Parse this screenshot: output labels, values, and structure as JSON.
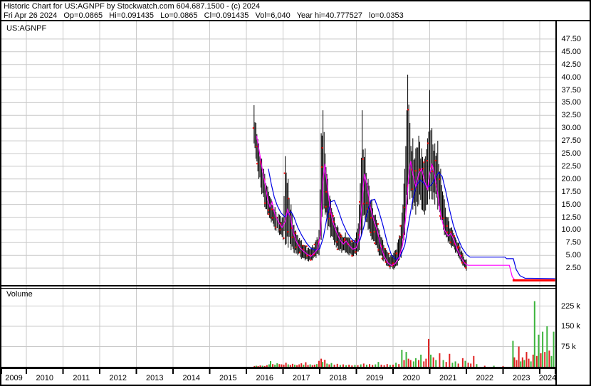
{
  "header": {
    "line1": "Historic Chart for US:AGNPF by Stockwatch.com 604.687.1500 - (c) 2024",
    "line2": "Fri Apr 26 2024   Op=0.0865   Hi=0.091435   Lo=0.0865   Cl=0.091435   Vol=6,040   Year hi=40.777527   lo=0.0353"
  },
  "price_pane": {
    "symbol_label": "US:AGNPF"
  },
  "volume_pane": {
    "label": "Volume"
  },
  "axes": {
    "price_ticks": [
      "47.50",
      "45.00",
      "42.50",
      "40.00",
      "37.50",
      "35.00",
      "32.50",
      "30.00",
      "27.50",
      "25.00",
      "22.50",
      "20.00",
      "17.50",
      "15.00",
      "12.50",
      "10.00",
      "7.50",
      "5.00",
      "2.50"
    ],
    "volume_ticks": [
      "225 k",
      "150 k",
      "75 k"
    ],
    "years": [
      "2009",
      "2010",
      "2011",
      "2012",
      "2013",
      "2014",
      "2015",
      "2016",
      "2017",
      "2018",
      "2019",
      "2020",
      "2021",
      "2022",
      "2023",
      "2024"
    ]
  },
  "colors": {
    "grid": "#c9c9c9",
    "bars": "#000000",
    "close_tick": "#ff0000",
    "ma_fast": "#ff00ff",
    "ma_slow": "#0000e6",
    "last_price": "#ff0000",
    "volume_up": "#3cb43c",
    "volume_down": "#e02222",
    "border": "#000000"
  },
  "chart_data": {
    "type": "ohlc-bar+volume",
    "title": "Historic Chart for US:AGNPF",
    "x_span_years": [
      2009,
      2024.43
    ],
    "price_ylim": [
      0,
      48.75
    ],
    "volume_ylim_k": [
      0,
      270
    ],
    "legend_position": "none",
    "grid": true,
    "bars_envelope_lo_hi": [
      [
        2016.21,
        27,
        34.5
      ],
      [
        2016.26,
        24,
        31
      ],
      [
        2016.34,
        20,
        27
      ],
      [
        2016.42,
        17,
        24
      ],
      [
        2016.5,
        14.5,
        21
      ],
      [
        2016.58,
        13,
        18.5
      ],
      [
        2016.68,
        11.5,
        16
      ],
      [
        2016.78,
        10,
        14.5
      ],
      [
        2016.9,
        9,
        13
      ],
      [
        2017.0,
        8,
        12.5
      ],
      [
        2017.06,
        7,
        24.5
      ],
      [
        2017.14,
        6.5,
        20
      ],
      [
        2017.22,
        6,
        15
      ],
      [
        2017.3,
        5.5,
        11
      ],
      [
        2017.4,
        5,
        9
      ],
      [
        2017.5,
        4.3,
        8
      ],
      [
        2017.6,
        4,
        7
      ],
      [
        2017.7,
        3.8,
        6.5
      ],
      [
        2017.8,
        4,
        7
      ],
      [
        2017.9,
        4.5,
        8
      ],
      [
        2017.98,
        5,
        10
      ],
      [
        2018.04,
        8,
        29
      ],
      [
        2018.09,
        14,
        33.5
      ],
      [
        2018.15,
        13,
        25
      ],
      [
        2018.22,
        10,
        20
      ],
      [
        2018.3,
        8.5,
        16
      ],
      [
        2018.4,
        7,
        12.5
      ],
      [
        2018.5,
        6,
        10.5
      ],
      [
        2018.6,
        5.5,
        9
      ],
      [
        2018.7,
        5.5,
        9.5
      ],
      [
        2018.8,
        5,
        8.5
      ],
      [
        2018.9,
        4.8,
        8
      ],
      [
        2019.0,
        5,
        9.5
      ],
      [
        2019.08,
        6,
        15
      ],
      [
        2019.16,
        10,
        33.5
      ],
      [
        2019.24,
        12,
        26
      ],
      [
        2019.32,
        10,
        20
      ],
      [
        2019.42,
        8,
        16
      ],
      [
        2019.52,
        7,
        13
      ],
      [
        2019.62,
        5,
        10
      ],
      [
        2019.72,
        4,
        8
      ],
      [
        2019.82,
        3,
        6
      ],
      [
        2019.92,
        2.3,
        5
      ],
      [
        2020.02,
        2.2,
        5.5
      ],
      [
        2020.12,
        3,
        7.5
      ],
      [
        2020.22,
        4.5,
        11
      ],
      [
        2020.32,
        9,
        22
      ],
      [
        2020.4,
        15,
        40.5
      ],
      [
        2020.46,
        16,
        31
      ],
      [
        2020.54,
        14,
        28
      ],
      [
        2020.62,
        13,
        26
      ],
      [
        2020.7,
        15,
        28.5
      ],
      [
        2020.78,
        14,
        26
      ],
      [
        2020.86,
        13,
        24
      ],
      [
        2020.94,
        15,
        28
      ],
      [
        2021.0,
        16,
        37.5
      ],
      [
        2021.06,
        16,
        30
      ],
      [
        2021.14,
        15,
        27
      ],
      [
        2021.22,
        14,
        27.5
      ],
      [
        2021.3,
        12,
        22
      ],
      [
        2021.4,
        9,
        16
      ],
      [
        2021.5,
        7.5,
        12.5
      ],
      [
        2021.6,
        6.5,
        10.5
      ],
      [
        2021.7,
        5.5,
        8.5
      ],
      [
        2021.8,
        4.5,
        7.5
      ],
      [
        2021.9,
        3,
        5.5
      ],
      [
        2022.0,
        2,
        4.2
      ],
      [
        2022.04,
        1.8,
        3.5
      ]
    ],
    "ma_fast_magenta": [
      [
        2016.28,
        28.5
      ],
      [
        2016.34,
        26
      ],
      [
        2016.42,
        22.5
      ],
      [
        2016.5,
        19.5
      ],
      [
        2016.58,
        16
      ],
      [
        2016.64,
        14.5
      ],
      [
        2016.7,
        15.5
      ],
      [
        2016.78,
        13
      ],
      [
        2016.88,
        11.5
      ],
      [
        2016.97,
        10.5
      ],
      [
        2017.05,
        11.5
      ],
      [
        2017.12,
        14
      ],
      [
        2017.2,
        12.5
      ],
      [
        2017.28,
        9.5
      ],
      [
        2017.36,
        7.8
      ],
      [
        2017.46,
        6.5
      ],
      [
        2017.56,
        5.8
      ],
      [
        2017.66,
        5.2
      ],
      [
        2017.76,
        4.8
      ],
      [
        2017.86,
        5.5
      ],
      [
        2017.94,
        6.2
      ],
      [
        2018.02,
        9
      ],
      [
        2018.08,
        19
      ],
      [
        2018.14,
        23
      ],
      [
        2018.2,
        19
      ],
      [
        2018.28,
        14.5
      ],
      [
        2018.36,
        11.5
      ],
      [
        2018.46,
        9.5
      ],
      [
        2018.56,
        8
      ],
      [
        2018.64,
        7.2
      ],
      [
        2018.72,
        7.8
      ],
      [
        2018.8,
        7
      ],
      [
        2018.9,
        6.2
      ],
      [
        2019.0,
        6.5
      ],
      [
        2019.08,
        8.5
      ],
      [
        2019.16,
        16
      ],
      [
        2019.22,
        21
      ],
      [
        2019.3,
        18.5
      ],
      [
        2019.38,
        14.5
      ],
      [
        2019.48,
        11.8
      ],
      [
        2019.58,
        9.5
      ],
      [
        2019.66,
        7
      ],
      [
        2019.76,
        4.8
      ],
      [
        2019.86,
        3.5
      ],
      [
        2019.96,
        3.0
      ],
      [
        2020.06,
        3.4
      ],
      [
        2020.16,
        4.5
      ],
      [
        2020.26,
        7
      ],
      [
        2020.34,
        12
      ],
      [
        2020.42,
        20
      ],
      [
        2020.48,
        23.5
      ],
      [
        2020.54,
        21
      ],
      [
        2020.62,
        18.5
      ],
      [
        2020.7,
        21
      ],
      [
        2020.78,
        22
      ],
      [
        2020.86,
        19.5
      ],
      [
        2020.94,
        18
      ],
      [
        2021.0,
        21
      ],
      [
        2021.06,
        23
      ],
      [
        2021.14,
        20.5
      ],
      [
        2021.22,
        17
      ],
      [
        2021.3,
        13
      ],
      [
        2021.4,
        10
      ],
      [
        2021.5,
        8.8
      ],
      [
        2021.58,
        9.3
      ],
      [
        2021.66,
        8
      ],
      [
        2021.76,
        6
      ],
      [
        2021.86,
        4.5
      ],
      [
        2021.96,
        3.4
      ],
      [
        2022.04,
        3.05
      ],
      [
        2023.17,
        3.05
      ],
      [
        2023.25,
        0.8
      ],
      [
        2023.32,
        0.15
      ],
      [
        2024.42,
        0.12
      ]
    ],
    "ma_slow_blue": [
      [
        2016.6,
        22
      ],
      [
        2016.68,
        19
      ],
      [
        2016.76,
        16.5
      ],
      [
        2016.84,
        14.8
      ],
      [
        2016.94,
        13.4
      ],
      [
        2017.04,
        12.6
      ],
      [
        2017.12,
        13
      ],
      [
        2017.22,
        13.6
      ],
      [
        2017.3,
        12.5
      ],
      [
        2017.4,
        10.5
      ],
      [
        2017.52,
        8.8
      ],
      [
        2017.64,
        7.4
      ],
      [
        2017.76,
        6.4
      ],
      [
        2017.88,
        6.0
      ],
      [
        2018.0,
        6.3
      ],
      [
        2018.1,
        8.5
      ],
      [
        2018.2,
        12.5
      ],
      [
        2018.3,
        15.5
      ],
      [
        2018.4,
        15.8
      ],
      [
        2018.5,
        14
      ],
      [
        2018.62,
        11.5
      ],
      [
        2018.74,
        9.6
      ],
      [
        2018.86,
        8.3
      ],
      [
        2018.98,
        7.5
      ],
      [
        2019.1,
        8
      ],
      [
        2019.2,
        10.5
      ],
      [
        2019.3,
        13.5
      ],
      [
        2019.4,
        15.8
      ],
      [
        2019.5,
        16
      ],
      [
        2019.6,
        14
      ],
      [
        2019.72,
        11
      ],
      [
        2019.84,
        7.5
      ],
      [
        2019.96,
        5
      ],
      [
        2020.08,
        4.2
      ],
      [
        2020.2,
        4.8
      ],
      [
        2020.32,
        7
      ],
      [
        2020.44,
        12
      ],
      [
        2020.54,
        16
      ],
      [
        2020.64,
        18.8
      ],
      [
        2020.74,
        19.8
      ],
      [
        2020.84,
        19.2
      ],
      [
        2020.94,
        18.4
      ],
      [
        2021.04,
        18.8
      ],
      [
        2021.14,
        20
      ],
      [
        2021.24,
        21.3
      ],
      [
        2021.34,
        20.5
      ],
      [
        2021.44,
        17.5
      ],
      [
        2021.54,
        14
      ],
      [
        2021.64,
        11
      ],
      [
        2021.76,
        8.5
      ],
      [
        2021.88,
        6.5
      ],
      [
        2022.0,
        5.2
      ],
      [
        2022.1,
        4.65
      ],
      [
        2023.05,
        4.65
      ],
      [
        2023.1,
        4.35
      ],
      [
        2023.28,
        4.35
      ],
      [
        2023.36,
        2.2
      ],
      [
        2023.46,
        1.0
      ],
      [
        2023.6,
        0.5
      ],
      [
        2024.42,
        0.42
      ]
    ],
    "last_price_line": {
      "from_year": 2023.26,
      "to_year": 2024.42,
      "price": 0.09
    },
    "volume_bars_k": [
      [
        2016.22,
        3,
        0
      ],
      [
        2016.27,
        4,
        1
      ],
      [
        2016.32,
        3,
        0
      ],
      [
        2016.38,
        5,
        0
      ],
      [
        2016.44,
        4,
        1
      ],
      [
        2016.5,
        3,
        0
      ],
      [
        2016.56,
        6,
        0
      ],
      [
        2016.62,
        9,
        1
      ],
      [
        2016.66,
        21,
        1
      ],
      [
        2016.72,
        10,
        0
      ],
      [
        2016.78,
        8,
        1
      ],
      [
        2016.84,
        13,
        1
      ],
      [
        2016.9,
        10,
        0
      ],
      [
        2016.96,
        9,
        0
      ],
      [
        2017.02,
        8,
        0
      ],
      [
        2017.08,
        15,
        0
      ],
      [
        2017.14,
        9,
        1
      ],
      [
        2017.2,
        7,
        0
      ],
      [
        2017.26,
        11,
        0
      ],
      [
        2017.32,
        8,
        1
      ],
      [
        2017.38,
        6,
        0
      ],
      [
        2017.44,
        9,
        0
      ],
      [
        2017.5,
        13,
        0
      ],
      [
        2017.56,
        8,
        1
      ],
      [
        2017.62,
        17,
        0
      ],
      [
        2017.68,
        7,
        0
      ],
      [
        2017.74,
        9,
        1
      ],
      [
        2017.8,
        6,
        0
      ],
      [
        2017.86,
        8,
        0
      ],
      [
        2017.92,
        10,
        1
      ],
      [
        2017.98,
        22,
        0
      ],
      [
        2018.04,
        30,
        0
      ],
      [
        2018.08,
        18,
        1
      ],
      [
        2018.14,
        26,
        0
      ],
      [
        2018.2,
        12,
        1
      ],
      [
        2018.26,
        9,
        0
      ],
      [
        2018.32,
        14,
        1
      ],
      [
        2018.4,
        8,
        0
      ],
      [
        2018.48,
        11,
        0
      ],
      [
        2018.56,
        7,
        1
      ],
      [
        2018.64,
        9,
        0
      ],
      [
        2018.72,
        6,
        1
      ],
      [
        2018.8,
        8,
        0
      ],
      [
        2018.88,
        5,
        0
      ],
      [
        2018.96,
        7,
        1
      ],
      [
        2019.04,
        6,
        0
      ],
      [
        2019.12,
        9,
        1
      ],
      [
        2019.2,
        12,
        0
      ],
      [
        2019.28,
        8,
        1
      ],
      [
        2019.36,
        10,
        0
      ],
      [
        2019.44,
        7,
        0
      ],
      [
        2019.52,
        9,
        1
      ],
      [
        2019.6,
        18,
        1
      ],
      [
        2019.68,
        8,
        0
      ],
      [
        2019.76,
        6,
        0
      ],
      [
        2019.84,
        10,
        0
      ],
      [
        2019.92,
        7,
        1
      ],
      [
        2020.0,
        8,
        0
      ],
      [
        2020.08,
        15,
        1
      ],
      [
        2020.16,
        10,
        0
      ],
      [
        2020.24,
        63,
        1
      ],
      [
        2020.3,
        25,
        0
      ],
      [
        2020.36,
        55,
        1
      ],
      [
        2020.42,
        30,
        0
      ],
      [
        2020.48,
        25,
        0
      ],
      [
        2020.56,
        20,
        1
      ],
      [
        2020.62,
        32,
        1
      ],
      [
        2020.7,
        25,
        0
      ],
      [
        2020.76,
        45,
        1
      ],
      [
        2020.84,
        20,
        0
      ],
      [
        2020.9,
        30,
        0
      ],
      [
        2020.97,
        103,
        0
      ],
      [
        2021.03,
        45,
        1
      ],
      [
        2021.1,
        35,
        0
      ],
      [
        2021.17,
        25,
        1
      ],
      [
        2021.27,
        50,
        0
      ],
      [
        2021.37,
        25,
        1
      ],
      [
        2021.45,
        18,
        0
      ],
      [
        2021.54,
        48,
        0
      ],
      [
        2021.62,
        15,
        1
      ],
      [
        2021.7,
        20,
        1
      ],
      [
        2021.78,
        12,
        0
      ],
      [
        2021.9,
        32,
        0
      ],
      [
        2021.97,
        22,
        1
      ],
      [
        2022.05,
        15,
        0
      ],
      [
        2022.12,
        12,
        0
      ],
      [
        2022.2,
        40,
        0
      ],
      [
        2022.28,
        10,
        1
      ],
      [
        2022.5,
        4,
        0
      ],
      [
        2022.75,
        4,
        1
      ],
      [
        2023.0,
        3,
        0
      ],
      [
        2023.27,
        96,
        1
      ],
      [
        2023.31,
        35,
        0
      ],
      [
        2023.37,
        25,
        0
      ],
      [
        2023.43,
        75,
        0
      ],
      [
        2023.48,
        20,
        1
      ],
      [
        2023.53,
        35,
        0
      ],
      [
        2023.58,
        25,
        1
      ],
      [
        2023.64,
        55,
        0
      ],
      [
        2023.7,
        30,
        0
      ],
      [
        2023.76,
        20,
        1
      ],
      [
        2023.82,
        45,
        0
      ],
      [
        2023.86,
        243,
        1
      ],
      [
        2023.92,
        40,
        0
      ],
      [
        2023.97,
        119,
        1
      ],
      [
        2024.03,
        50,
        0
      ],
      [
        2024.08,
        130,
        1
      ],
      [
        2024.14,
        55,
        0
      ],
      [
        2024.2,
        150,
        1
      ],
      [
        2024.26,
        60,
        0
      ],
      [
        2024.32,
        40,
        1
      ],
      [
        2024.38,
        130,
        1
      ]
    ]
  }
}
